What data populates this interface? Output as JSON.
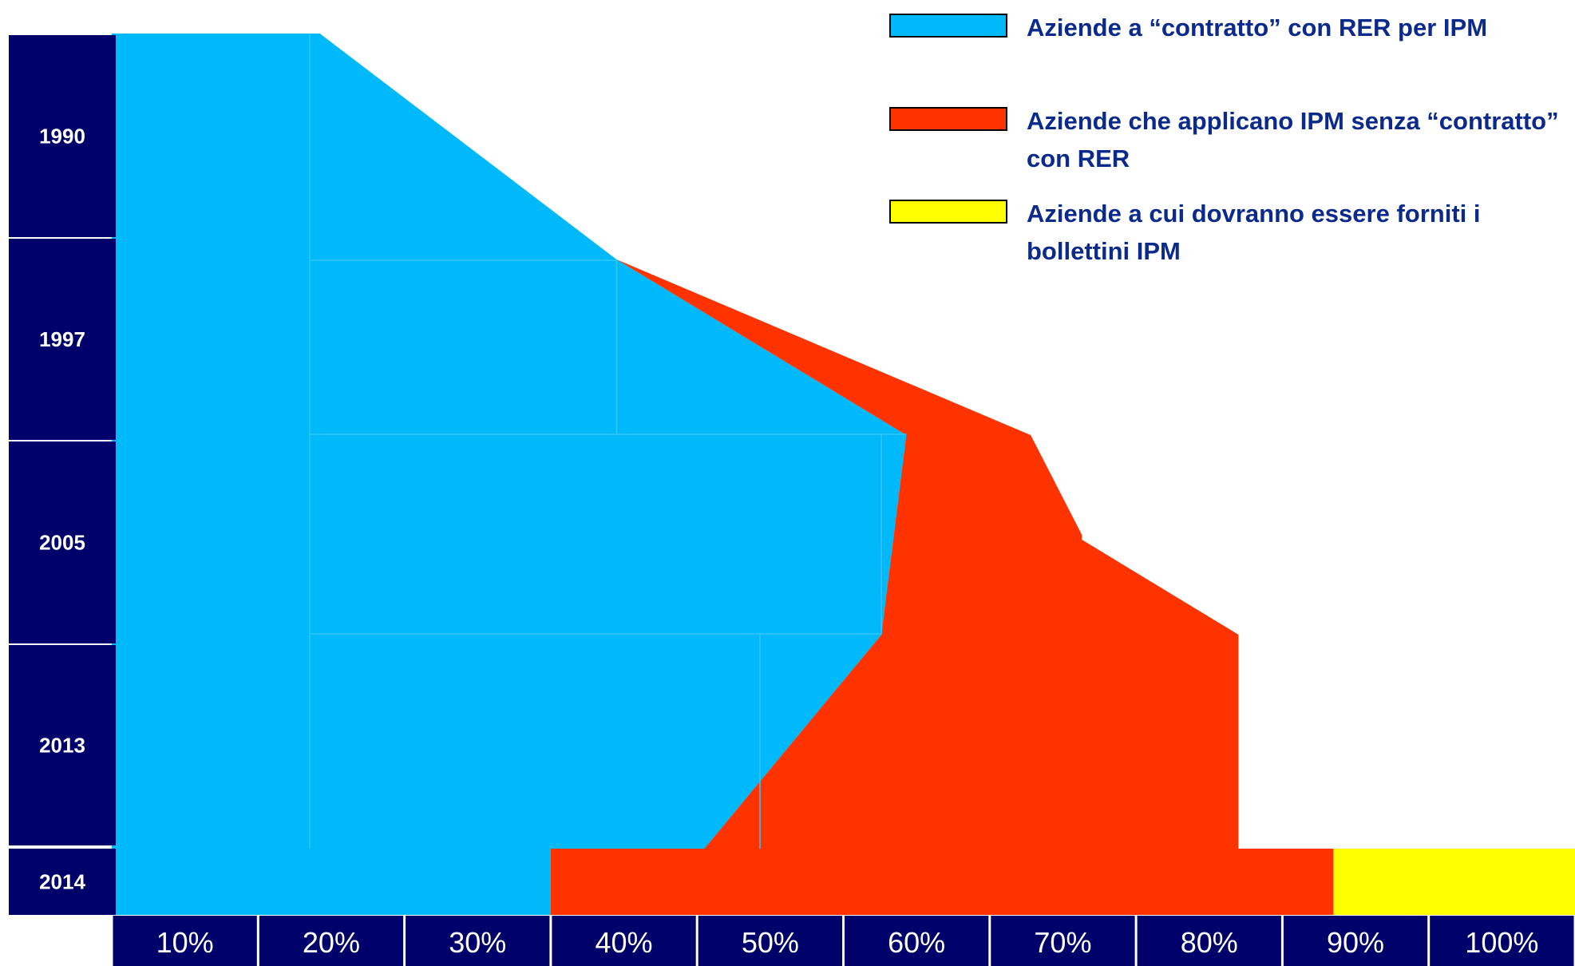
{
  "colors": {
    "contract": "#00b9fb",
    "no_contract": "#ff3300",
    "bulletins": "#ffff00",
    "axis_bg": "#00006b",
    "legend_text": "#0b2a8c"
  },
  "legend": {
    "items": [
      {
        "label": "Aziende a “contratto” con RER per IPM",
        "color": "#00b9fb"
      },
      {
        "label": "Aziende che applicano IPM senza “contratto” con RER",
        "color": "#ff3300"
      },
      {
        "label": "Aziende a cui dovranno essere forniti i bollettini IPM",
        "color": "#ffff00"
      }
    ]
  },
  "chart_data": {
    "type": "area",
    "orientation": "horizontal",
    "x_ticks": [
      "10%",
      "20%",
      "30%",
      "40%",
      "50%",
      "60%",
      "70%",
      "80%",
      "90%",
      "100%"
    ],
    "y_categories": [
      "1990",
      "1997",
      "2005",
      "2013",
      "2014"
    ],
    "xlim": [
      0,
      100
    ],
    "series": [
      {
        "name": "Aziende a “contratto” con RER per IPM",
        "color": "#00b9fb",
        "boundary": [
          {
            "year": "1990",
            "pct": 14.0
          },
          {
            "year": "1997",
            "pct": 34.5
          },
          {
            "year": "2005",
            "pct": 54.3
          },
          {
            "year": "2013",
            "pct": 40.5
          },
          {
            "year": "2014",
            "pct": 30.0
          }
        ]
      },
      {
        "name": "Aziende che applicano IPM senza “contratto” con RER",
        "color": "#ff3300",
        "boundary": [
          {
            "year": "1997",
            "pct": 34.5
          },
          {
            "year": "2005",
            "pct": 62.8
          },
          {
            "year": "2013",
            "pct": 77.0
          },
          {
            "year": "2014",
            "pct": 83.5
          }
        ]
      },
      {
        "name": "Aziende a cui dovranno essere forniti i bollettini IPM",
        "color": "#ffff00",
        "boundary": [
          {
            "year": "2014",
            "pct": 100
          }
        ]
      }
    ],
    "grid": false,
    "legend_position": "top-right"
  }
}
